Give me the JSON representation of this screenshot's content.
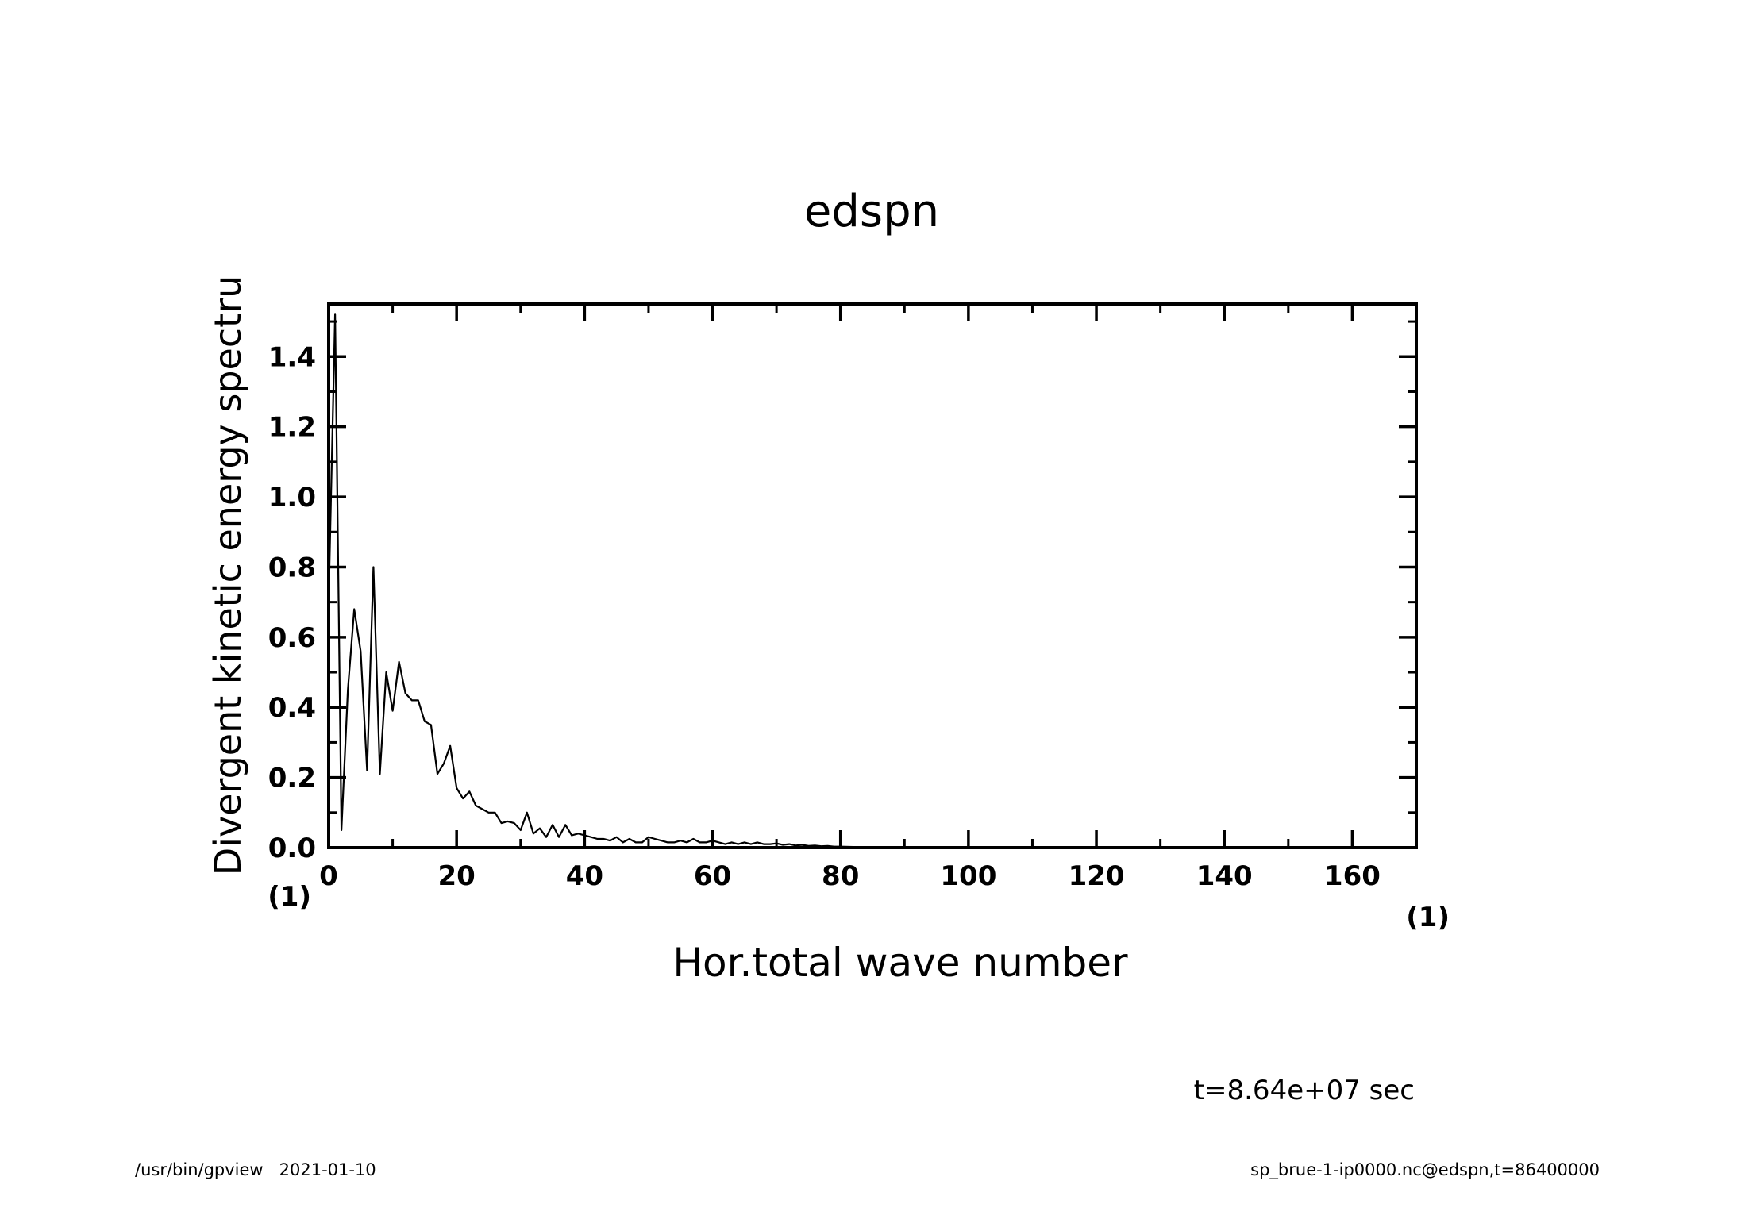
{
  "chart_data": {
    "type": "line",
    "title": "edspn",
    "xlabel": "Hor.total wave number",
    "ylabel": "Divergent kinetic energy spectru",
    "x_unit": "(1)",
    "y_unit": "(1)",
    "xlim": [
      0,
      170
    ],
    "ylim": [
      0,
      1.55
    ],
    "x_ticks": [
      0,
      20,
      40,
      60,
      80,
      100,
      120,
      140,
      160
    ],
    "x_tick_labels": [
      "0",
      "20",
      "40",
      "60",
      "80",
      "100",
      "120",
      "140",
      "160"
    ],
    "y_ticks": [
      0,
      0.2,
      0.4,
      0.6,
      0.8,
      1.0,
      1.2,
      1.4
    ],
    "y_tick_labels": [
      "0.0",
      "0.2",
      "0.4",
      "0.6",
      "0.8",
      "1.0",
      "1.2",
      "1.4"
    ],
    "grid": false,
    "series": [
      {
        "color": "#000000",
        "x": [
          0,
          1,
          2,
          3,
          4,
          5,
          6,
          7,
          8,
          9,
          10,
          11,
          12,
          13,
          14,
          15,
          16,
          17,
          18,
          19,
          20,
          21,
          22,
          23,
          24,
          25,
          26,
          27,
          28,
          29,
          30,
          31,
          32,
          33,
          34,
          35,
          36,
          37,
          38,
          39,
          40,
          41,
          42,
          43,
          44,
          45,
          46,
          47,
          48,
          49,
          50,
          51,
          52,
          53,
          54,
          55,
          56,
          57,
          58,
          59,
          60,
          61,
          62,
          63,
          64,
          65,
          66,
          67,
          68,
          69,
          70,
          71,
          72,
          73,
          74,
          75,
          76,
          77,
          78,
          79,
          80,
          82,
          85,
          90,
          100,
          120,
          140,
          160,
          170
        ],
        "y": [
          0.7,
          1.52,
          0.05,
          0.45,
          0.68,
          0.56,
          0.22,
          0.8,
          0.21,
          0.5,
          0.39,
          0.53,
          0.44,
          0.42,
          0.42,
          0.36,
          0.35,
          0.21,
          0.24,
          0.29,
          0.17,
          0.14,
          0.16,
          0.12,
          0.11,
          0.1,
          0.1,
          0.07,
          0.075,
          0.07,
          0.05,
          0.1,
          0.04,
          0.055,
          0.03,
          0.065,
          0.03,
          0.065,
          0.035,
          0.04,
          0.035,
          0.03,
          0.025,
          0.025,
          0.02,
          0.03,
          0.015,
          0.025,
          0.015,
          0.015,
          0.03,
          0.025,
          0.02,
          0.015,
          0.015,
          0.02,
          0.015,
          0.025,
          0.015,
          0.015,
          0.02,
          0.015,
          0.01,
          0.015,
          0.01,
          0.015,
          0.01,
          0.015,
          0.01,
          0.01,
          0.012,
          0.008,
          0.01,
          0.006,
          0.008,
          0.005,
          0.006,
          0.004,
          0.005,
          0.003,
          0.003,
          0.002,
          0.001,
          0.0,
          0.0,
          0.0,
          0.0,
          0.0,
          0.0
        ]
      }
    ]
  },
  "annotation": {
    "time_label": "t=8.64e+07 sec"
  },
  "footer": {
    "left": "/usr/bin/gpview   2021-01-10",
    "right": "sp_brue-1-ip0000.nc@edspn,t=86400000"
  }
}
